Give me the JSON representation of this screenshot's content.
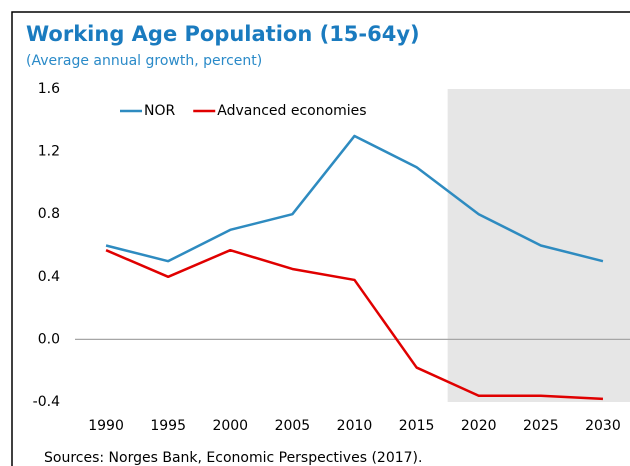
{
  "chart_data": {
    "type": "line",
    "title": "Working Age Population (15-64y)",
    "subtitle": "(Average annual growth, percent)",
    "source": "Sources: Norges Bank, Economic Perspectives (2017).",
    "x": [
      1990,
      1995,
      2000,
      2005,
      2010,
      2015,
      2020,
      2025,
      2030
    ],
    "series": [
      {
        "name": "NOR",
        "color": "#2e8bc0",
        "values": [
          0.6,
          0.5,
          0.7,
          0.8,
          1.3,
          1.1,
          0.8,
          0.6,
          0.5
        ]
      },
      {
        "name": "Advanced economies",
        "color": "#e00000",
        "values": [
          0.57,
          0.4,
          0.57,
          0.45,
          0.38,
          -0.18,
          -0.36,
          -0.36,
          -0.38
        ]
      }
    ],
    "xlim": [
      1987.5,
      2032.5
    ],
    "xticks": [
      1990,
      1995,
      2000,
      2005,
      2010,
      2015,
      2020,
      2025,
      2030
    ],
    "ylim": [
      -0.4,
      1.6
    ],
    "yticks": [
      1.6,
      1.2,
      0.8,
      0.4,
      {
        "value": 0,
        "label": "0.0"
      },
      -0.4
    ],
    "shaded_region": [
      2017.5,
      2032.5
    ],
    "legend": "top-left"
  }
}
